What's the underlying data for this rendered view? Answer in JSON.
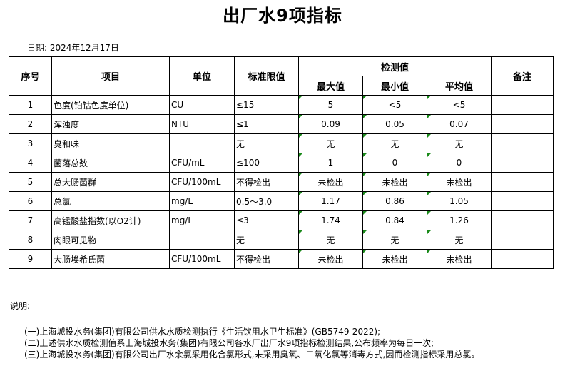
{
  "title": "出厂水9项指标",
  "date": "日期: 2024年12月17日",
  "headers": {
    "no": "序号",
    "item": "项目",
    "unit": "单位",
    "limit": "标准限值",
    "detected": "检测值",
    "max": "最大值",
    "min": "最小值",
    "avg": "平均值",
    "remark": "备注"
  },
  "rows": [
    {
      "no": "1",
      "item": "色度(铂钴色度单位)",
      "unit": "CU",
      "limit": "≤15",
      "max": "5",
      "min": "<5",
      "avg": "<5",
      "remark": ""
    },
    {
      "no": "2",
      "item": "浑浊度",
      "unit": "NTU",
      "limit": "≤1",
      "max": "0.09",
      "min": "0.05",
      "avg": "0.07",
      "remark": ""
    },
    {
      "no": "3",
      "item": "臭和味",
      "unit": "",
      "limit": "无",
      "max": "无",
      "min": "无",
      "avg": "无",
      "remark": ""
    },
    {
      "no": "4",
      "item": "菌落总数",
      "unit": "CFU/mL",
      "limit": "≤100",
      "max": "1",
      "min": "0",
      "avg": "0",
      "remark": ""
    },
    {
      "no": "5",
      "item": "总大肠菌群",
      "unit": "CFU/100mL",
      "limit": "不得检出",
      "max": "未检出",
      "min": "未检出",
      "avg": "未检出",
      "remark": ""
    },
    {
      "no": "6",
      "item": "总氯",
      "unit": "mg/L",
      "limit": "0.5～3.0",
      "max": "1.17",
      "min": "0.86",
      "avg": "1.05",
      "remark": ""
    },
    {
      "no": "7",
      "item": "高锰酸盐指数(以O2计)",
      "unit": "mg/L",
      "limit": "≤3",
      "max": "1.74",
      "min": "0.84",
      "avg": "1.26",
      "remark": ""
    },
    {
      "no": "8",
      "item": "肉眼可见物",
      "unit": "",
      "limit": "无",
      "max": "无",
      "min": "无",
      "avg": "无",
      "remark": ""
    },
    {
      "no": "9",
      "item": "大肠埃希氏菌",
      "unit": "CFU/100mL",
      "limit": "不得检出",
      "max": "未检出",
      "min": "未检出",
      "avg": "未检出",
      "remark": ""
    }
  ],
  "notes": {
    "heading": "说明:",
    "lines": [
      "(一)上海城投水务(集团)有限公司供水水质检测执行《生活饮用水卫生标准》(GB5749-2022);",
      "(二)上述供水水质检测值系上海城投水务(集团)有限公司各水厂出厂水9项指标检测结果,公布频率为每日一次;",
      "(三)上海城投水务(集团)有限公司出厂水余氯采用化合氯形式,未采用臭氧、二氧化氯等消毒方式,因而检测指标采用总氯。"
    ]
  },
  "colors": {
    "cell_marker": "#1a8a1a"
  }
}
